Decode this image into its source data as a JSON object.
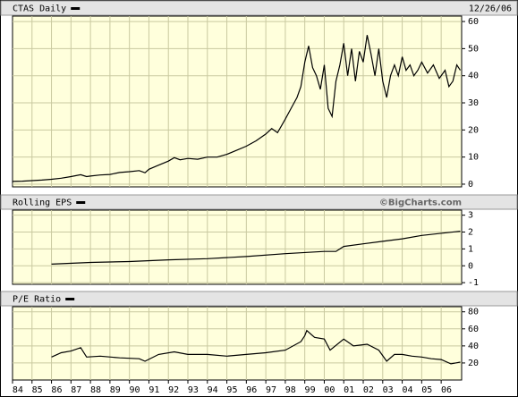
{
  "chart_data": [
    {
      "type": "line",
      "date": "12/26/06",
      "series": [
        {
          "name": "CTAS Daily",
          "color": "#000000",
          "x": [
            1984.0,
            1984.5,
            1985.0,
            1985.5,
            1986.0,
            1986.5,
            1987.0,
            1987.5,
            1987.8,
            1988.0,
            1988.5,
            1989.0,
            1989.5,
            1990.0,
            1990.5,
            1990.8,
            1991.0,
            1991.5,
            1992.0,
            1992.3,
            1992.6,
            1993.0,
            1993.5,
            1994.0,
            1994.5,
            1995.0,
            1995.5,
            1996.0,
            1996.5,
            1997.0,
            1997.3,
            1997.6,
            1998.0,
            1998.3,
            1998.6,
            1998.8,
            1999.0,
            1999.2,
            1999.4,
            1999.6,
            1999.8,
            2000.0,
            2000.2,
            2000.4,
            2000.6,
            2000.8,
            2001.0,
            2001.2,
            2001.4,
            2001.6,
            2001.8,
            2002.0,
            2002.2,
            2002.4,
            2002.6,
            2002.8,
            2003.0,
            2003.2,
            2003.4,
            2003.6,
            2003.8,
            2004.0,
            2004.2,
            2004.4,
            2004.6,
            2004.8,
            2005.0,
            2005.3,
            2005.6,
            2005.9,
            2006.2,
            2006.4,
            2006.6,
            2006.8,
            2006.98
          ],
          "values": [
            1.0,
            1.1,
            1.3,
            1.5,
            1.8,
            2.2,
            2.8,
            3.5,
            2.8,
            3.0,
            3.4,
            3.6,
            4.3,
            4.6,
            5.0,
            4.2,
            5.5,
            7.0,
            8.5,
            9.8,
            9.0,
            9.5,
            9.2,
            10.0,
            10.0,
            11.0,
            12.5,
            14.0,
            16.0,
            18.5,
            20.5,
            19.0,
            24,
            28,
            32,
            36,
            45,
            51,
            43,
            40,
            35,
            44,
            28,
            25,
            38,
            44,
            52,
            40,
            50,
            38,
            49,
            45,
            55,
            48,
            40,
            50,
            38,
            32,
            40,
            44,
            40,
            47,
            42,
            44,
            40,
            42,
            45,
            41,
            44,
            39,
            42,
            36,
            38,
            44,
            42
          ]
        }
      ],
      "xlim": [
        1984,
        2007.05
      ],
      "xticks": [
        1984,
        1985,
        1986,
        1987,
        1988,
        1989,
        1990,
        1991,
        1992,
        1993,
        1994,
        1995,
        1996,
        1997,
        1998,
        1999,
        2000,
        2001,
        2002,
        2003,
        2004,
        2005,
        2006
      ],
      "ylim": [
        -1,
        62
      ],
      "yticks": [
        0,
        10,
        20,
        30,
        40,
        50,
        60
      ],
      "grid": true
    },
    {
      "type": "line",
      "annotation": "©BigCharts.com",
      "series": [
        {
          "name": "Rolling EPS",
          "color": "#000000",
          "x": [
            1986.0,
            1988.0,
            1990.0,
            1992.0,
            1994.0,
            1996.0,
            1998.0,
            2000.0,
            2000.6,
            2001.0,
            2002.0,
            2003.0,
            2004.0,
            2005.0,
            2006.98
          ],
          "values": [
            0.1,
            0.2,
            0.25,
            0.35,
            0.42,
            0.55,
            0.72,
            0.85,
            0.85,
            1.15,
            1.3,
            1.45,
            1.6,
            1.8,
            2.05
          ]
        }
      ],
      "xlim": [
        1984,
        2007.05
      ],
      "xticks": [
        1984,
        1985,
        1986,
        1987,
        1988,
        1989,
        1990,
        1991,
        1992,
        1993,
        1994,
        1995,
        1996,
        1997,
        1998,
        1999,
        2000,
        2001,
        2002,
        2003,
        2004,
        2005,
        2006
      ],
      "ylim": [
        -1.1,
        3.3
      ],
      "yticks": [
        -1,
        0,
        1,
        2,
        3
      ],
      "grid": true
    },
    {
      "type": "line",
      "series": [
        {
          "name": "P/E Ratio",
          "color": "#000000",
          "x": [
            1986.0,
            1986.5,
            1987.0,
            1987.5,
            1987.8,
            1988.5,
            1989.5,
            1990.5,
            1990.8,
            1991.5,
            1992.3,
            1993.0,
            1994.0,
            1995.0,
            1996.0,
            1997.0,
            1998.0,
            1998.8,
            1999.0,
            1999.1,
            1999.5,
            2000.0,
            2000.3,
            2001.0,
            2001.5,
            2002.2,
            2002.8,
            2003.2,
            2003.6,
            2004.0,
            2004.5,
            2005.0,
            2005.5,
            2006.0,
            2006.5,
            2006.98
          ],
          "values": [
            27,
            32,
            34,
            38,
            27,
            28,
            26,
            25,
            22,
            30,
            33,
            30,
            30,
            28,
            30,
            32,
            35,
            45,
            52,
            58,
            50,
            48,
            35,
            48,
            40,
            42,
            35,
            22,
            30,
            30,
            28,
            27,
            25,
            24,
            19,
            21
          ]
        }
      ],
      "xlim": [
        1984,
        2007.05
      ],
      "xticks": [
        {
          "value": 1984,
          "label": "84"
        },
        {
          "value": 1985,
          "label": "85"
        },
        {
          "value": 1986,
          "label": "86"
        },
        {
          "value": 1987,
          "label": "87"
        },
        {
          "value": 1988,
          "label": "88"
        },
        {
          "value": 1989,
          "label": "89"
        },
        {
          "value": 1990,
          "label": "90"
        },
        {
          "value": 1991,
          "label": "91"
        },
        {
          "value": 1992,
          "label": "92"
        },
        {
          "value": 1993,
          "label": "93"
        },
        {
          "value": 1994,
          "label": "94"
        },
        {
          "value": 1995,
          "label": "95"
        },
        {
          "value": 1996,
          "label": "96"
        },
        {
          "value": 1997,
          "label": "97"
        },
        {
          "value": 1998,
          "label": "98"
        },
        {
          "value": 1999,
          "label": "99"
        },
        {
          "value": 2000,
          "label": "00"
        },
        {
          "value": 2001,
          "label": "01"
        },
        {
          "value": 2002,
          "label": "02"
        },
        {
          "value": 2003,
          "label": "03"
        },
        {
          "value": 2004,
          "label": "04"
        },
        {
          "value": 2005,
          "label": "05"
        },
        {
          "value": 2006,
          "label": "06"
        }
      ],
      "ylim": [
        0,
        86
      ],
      "yticks": [
        20,
        40,
        60,
        80
      ],
      "grid": true
    }
  ]
}
